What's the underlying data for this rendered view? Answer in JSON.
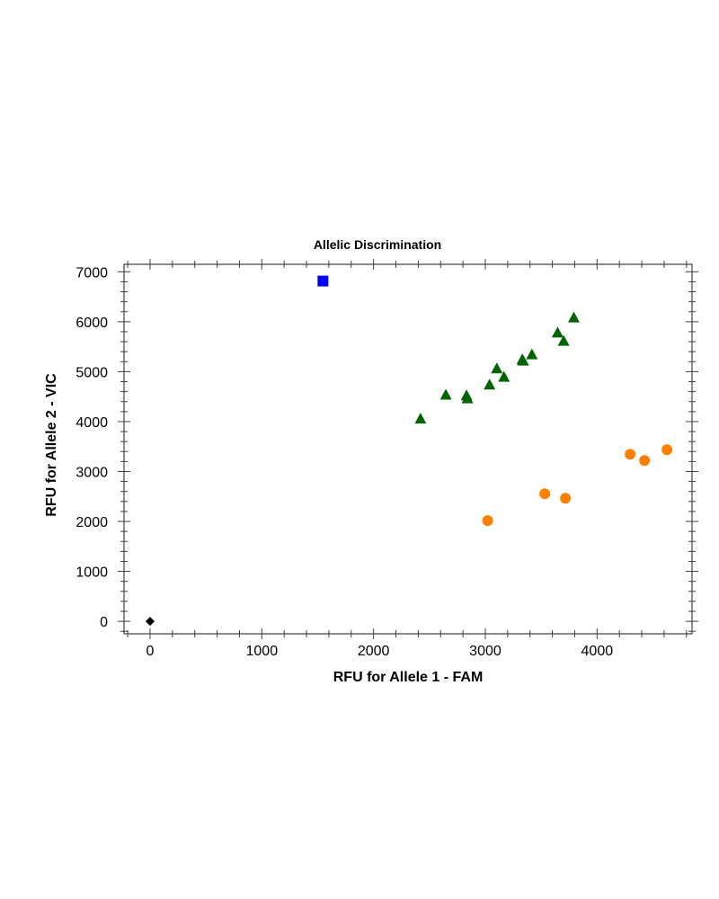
{
  "chart_data": {
    "type": "scatter",
    "title": "Allelic Discrimination",
    "xlabel": "RFU for Allele 1 - FAM",
    "ylabel": "RFU for Allele 2 - VIC",
    "xlim": [
      -233,
      4850
    ],
    "ylim": [
      -250,
      7150
    ],
    "xticks": [
      0,
      1000,
      2000,
      3000,
      4000
    ],
    "yticks": [
      0,
      1000,
      2000,
      3000,
      4000,
      5000,
      6000,
      7000
    ],
    "grid": false,
    "series": [
      {
        "marker": "square",
        "color": "#0000ff",
        "points": [
          [
            1547,
            6815
          ]
        ]
      },
      {
        "marker": "triangle",
        "color": "#006400",
        "points": [
          [
            2420,
            4050
          ],
          [
            2647,
            4530
          ],
          [
            2832,
            4517
          ],
          [
            2840,
            4457
          ],
          [
            3038,
            4733
          ],
          [
            3103,
            5057
          ],
          [
            3167,
            4889
          ],
          [
            3331,
            5237
          ],
          [
            3339,
            5213
          ],
          [
            3417,
            5339
          ],
          [
            3647,
            5776
          ],
          [
            3701,
            5609
          ],
          [
            3792,
            6077
          ]
        ]
      },
      {
        "marker": "circle",
        "color": "#ff8000",
        "points": [
          [
            3021,
            2016
          ],
          [
            3532,
            2554
          ],
          [
            3717,
            2465
          ],
          [
            4296,
            3347
          ],
          [
            4425,
            3221
          ],
          [
            4626,
            3437
          ]
        ]
      },
      {
        "marker": "diamond",
        "color": "#000000",
        "points": [
          [
            0,
            0
          ]
        ]
      }
    ]
  }
}
